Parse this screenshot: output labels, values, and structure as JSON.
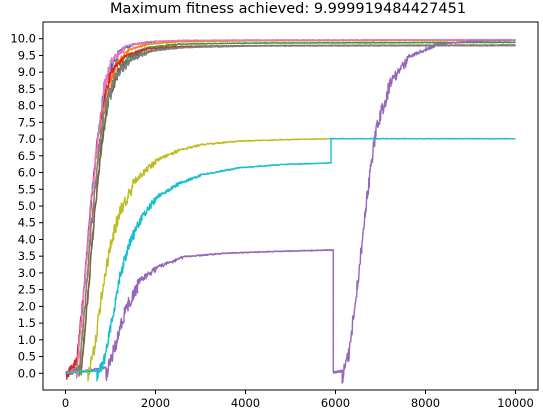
{
  "chart_data": {
    "type": "line",
    "title": "Maximum fitness achieved: 9.999919484427451",
    "xlabel": "",
    "ylabel": "",
    "xlim": [
      -500,
      10500
    ],
    "ylim": [
      -0.5,
      10.5
    ],
    "x_ticks": [
      0,
      2000,
      4000,
      6000,
      8000,
      10000
    ],
    "x_tick_labels": [
      "0",
      "2000",
      "4000",
      "6000",
      "8000",
      "10000"
    ],
    "y_ticks": [
      0.0,
      0.5,
      1.0,
      1.5,
      2.0,
      2.5,
      3.0,
      3.5,
      4.0,
      4.5,
      5.0,
      5.5,
      6.0,
      6.5,
      7.0,
      7.5,
      8.0,
      8.5,
      9.0,
      9.5,
      10.0
    ],
    "y_tick_labels": [
      "0.0",
      "0.5",
      "1.0",
      "1.5",
      "2.0",
      "2.5",
      "3.0",
      "3.5",
      "4.0",
      "4.5",
      "5.0",
      "5.5",
      "6.0",
      "6.5",
      "7.0",
      "7.5",
      "8.0",
      "8.5",
      "9.0",
      "9.5",
      "10.0"
    ],
    "grid": false,
    "legend": "none",
    "series": [
      {
        "color": "#1f77b4",
        "points": [
          [
            0,
            0
          ],
          [
            250,
            0.2
          ],
          [
            400,
            2.5
          ],
          [
            550,
            5
          ],
          [
            700,
            7
          ],
          [
            850,
            8.6
          ],
          [
            1000,
            9.3
          ],
          [
            1200,
            9.7
          ],
          [
            1500,
            9.85
          ],
          [
            2000,
            9.93
          ],
          [
            3000,
            9.95
          ],
          [
            5000,
            9.96
          ],
          [
            10000,
            9.97
          ]
        ],
        "noise": 0.35
      },
      {
        "color": "#ff7f0e",
        "points": [
          [
            0,
            0
          ],
          [
            300,
            0.2
          ],
          [
            450,
            2.5
          ],
          [
            600,
            5
          ],
          [
            750,
            7
          ],
          [
            900,
            8.5
          ],
          [
            1100,
            9.3
          ],
          [
            1400,
            9.7
          ],
          [
            1800,
            9.85
          ],
          [
            2500,
            9.92
          ],
          [
            4000,
            9.95
          ],
          [
            10000,
            9.96
          ]
        ],
        "noise": 0.35
      },
      {
        "color": "#2ca02c",
        "points": [
          [
            0,
            0
          ],
          [
            350,
            0.3
          ],
          [
            500,
            2.5
          ],
          [
            650,
            5
          ],
          [
            800,
            7
          ],
          [
            950,
            8.3
          ],
          [
            1150,
            9.1
          ],
          [
            1400,
            9.5
          ],
          [
            1800,
            9.75
          ],
          [
            2500,
            9.85
          ],
          [
            4000,
            9.88
          ],
          [
            10000,
            9.9
          ]
        ],
        "noise": 0.35
      },
      {
        "color": "#d62728",
        "points": [
          [
            0,
            0
          ],
          [
            250,
            0.5
          ],
          [
            400,
            2.5
          ],
          [
            550,
            5
          ],
          [
            700,
            7
          ],
          [
            850,
            8.4
          ],
          [
            1000,
            9.1
          ],
          [
            1300,
            9.5
          ],
          [
            1700,
            9.7
          ],
          [
            2500,
            9.78
          ],
          [
            4000,
            9.8
          ],
          [
            10000,
            9.82
          ]
        ],
        "noise": 0.35
      },
      {
        "color": "#9467bd",
        "points": [
          [
            0,
            0
          ],
          [
            900,
            0.2
          ],
          [
            1100,
            1
          ],
          [
            1300,
            2
          ],
          [
            1600,
            2.8
          ],
          [
            2000,
            3.2
          ],
          [
            2600,
            3.5
          ],
          [
            3500,
            3.6
          ],
          [
            4500,
            3.65
          ],
          [
            5950,
            3.7
          ],
          [
            5950,
            0.05
          ],
          [
            6150,
            0.1
          ],
          [
            6300,
            0.8
          ],
          [
            6500,
            3
          ],
          [
            6700,
            5.5
          ],
          [
            6900,
            7.5
          ],
          [
            7200,
            8.8
          ],
          [
            7600,
            9.5
          ],
          [
            8200,
            9.85
          ],
          [
            9000,
            9.94
          ],
          [
            10000,
            9.97
          ]
        ],
        "noise": 0.45
      },
      {
        "color": "#8c564b",
        "points": [
          [
            0,
            0
          ],
          [
            350,
            0.2
          ],
          [
            500,
            2.5
          ],
          [
            650,
            5
          ],
          [
            800,
            7
          ],
          [
            950,
            8.4
          ],
          [
            1150,
            9.1
          ],
          [
            1500,
            9.5
          ],
          [
            2000,
            9.7
          ],
          [
            3000,
            9.78
          ],
          [
            4500,
            9.8
          ],
          [
            10000,
            9.81
          ]
        ],
        "noise": 0.35
      },
      {
        "color": "#e377c2",
        "points": [
          [
            0,
            0
          ],
          [
            250,
            0.2
          ],
          [
            400,
            2.5
          ],
          [
            550,
            5
          ],
          [
            700,
            7
          ],
          [
            850,
            8.7
          ],
          [
            1000,
            9.4
          ],
          [
            1300,
            9.8
          ],
          [
            1800,
            9.92
          ],
          [
            2500,
            9.96
          ],
          [
            4000,
            9.97
          ],
          [
            10000,
            9.98
          ]
        ],
        "noise": 0.4
      },
      {
        "color": "#7f7f7f",
        "points": [
          [
            0,
            0
          ],
          [
            300,
            0.2
          ],
          [
            450,
            2.5
          ],
          [
            600,
            5
          ],
          [
            750,
            7
          ],
          [
            900,
            8.3
          ],
          [
            1100,
            9
          ],
          [
            1400,
            9.4
          ],
          [
            1800,
            9.65
          ],
          [
            2500,
            9.75
          ],
          [
            4000,
            9.8
          ],
          [
            10000,
            9.81
          ]
        ],
        "noise": 0.5
      },
      {
        "color": "#bcbd22",
        "points": [
          [
            0,
            0
          ],
          [
            500,
            0.1
          ],
          [
            650,
            1
          ],
          [
            800,
            2.5
          ],
          [
            1000,
            4
          ],
          [
            1200,
            5
          ],
          [
            1500,
            5.8
          ],
          [
            2000,
            6.4
          ],
          [
            2500,
            6.7
          ],
          [
            3000,
            6.85
          ],
          [
            3800,
            6.95
          ],
          [
            5000,
            7.0
          ],
          [
            5950,
            7.02
          ]
        ],
        "noise": 0.4
      },
      {
        "color": "#17becf",
        "points": [
          [
            0,
            0
          ],
          [
            700,
            0.1
          ],
          [
            850,
            0.5
          ],
          [
            1000,
            1.5
          ],
          [
            1200,
            3
          ],
          [
            1400,
            4
          ],
          [
            1700,
            4.8
          ],
          [
            2000,
            5.3
          ],
          [
            2500,
            5.7
          ],
          [
            3000,
            5.95
          ],
          [
            3800,
            6.15
          ],
          [
            4800,
            6.25
          ],
          [
            5900,
            6.3
          ],
          [
            5900,
            7.02
          ],
          [
            10000,
            7.02
          ]
        ],
        "noise": 0.35
      }
    ]
  }
}
